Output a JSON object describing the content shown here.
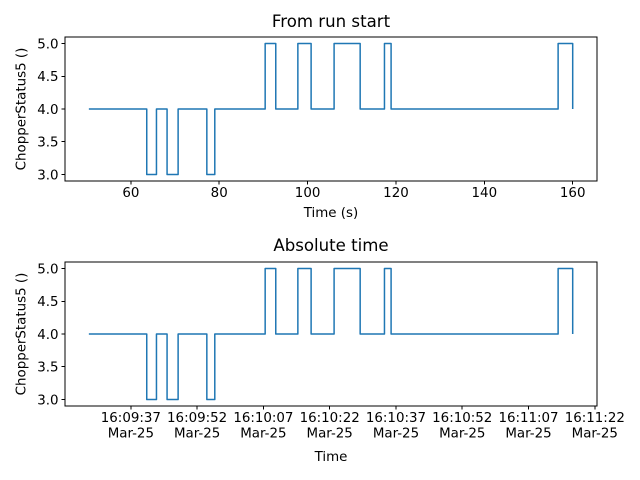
{
  "figure": {
    "background": "#ffffff",
    "axis_color": "#000000",
    "tick_label_color": "#000000",
    "line_color": "#1f77b4"
  },
  "chart_data": [
    {
      "type": "line",
      "drawstyle": "steps-post",
      "title": "From run start",
      "xlabel": "Time (s)",
      "ylabel": "ChopperStatus5 ()",
      "xlim": [
        45.1,
        165.5
      ],
      "ylim": [
        2.9,
        5.1
      ],
      "grid": false,
      "legend": null,
      "xticks": [
        {
          "value": 60,
          "lines": [
            "60"
          ]
        },
        {
          "value": 80,
          "lines": [
            "80"
          ]
        },
        {
          "value": 100,
          "lines": [
            "100"
          ]
        },
        {
          "value": 120,
          "lines": [
            "120"
          ]
        },
        {
          "value": 140,
          "lines": [
            "140"
          ]
        },
        {
          "value": 160,
          "lines": [
            "160"
          ]
        }
      ],
      "yticks": [
        {
          "value": 3.0,
          "label": "3.0"
        },
        {
          "value": 3.5,
          "label": "3.5"
        },
        {
          "value": 4.0,
          "label": "4.0"
        },
        {
          "value": 4.5,
          "label": "4.5"
        },
        {
          "value": 5.0,
          "label": "5.0"
        }
      ],
      "series": [
        {
          "name": "ChopperStatus5",
          "x": [
            50.5,
            63.6,
            65.8,
            68.2,
            70.7,
            77.2,
            79.0,
            90.4,
            92.8,
            97.8,
            100.8,
            106.0,
            111.9,
            117.4,
            118.9,
            156.7,
            160.0
          ],
          "y": [
            4,
            3,
            4,
            3,
            4,
            3,
            4,
            5,
            4,
            5,
            4,
            5,
            4,
            5,
            4,
            5,
            4
          ]
        }
      ]
    },
    {
      "type": "line",
      "drawstyle": "steps-post",
      "title": "Absolute time",
      "xlabel": "Time",
      "ylabel": "ChopperStatus5 ()",
      "xlim": [
        45.1,
        165.5
      ],
      "ylim": [
        2.9,
        5.1
      ],
      "grid": false,
      "legend": null,
      "xticks": [
        {
          "value": 60,
          "lines": [
            "16:09:37",
            "Mar-25"
          ]
        },
        {
          "value": 75,
          "lines": [
            "16:09:52",
            "Mar-25"
          ]
        },
        {
          "value": 90,
          "lines": [
            "16:10:07",
            "Mar-25"
          ]
        },
        {
          "value": 105,
          "lines": [
            "16:10:22",
            "Mar-25"
          ]
        },
        {
          "value": 120,
          "lines": [
            "16:10:37",
            "Mar-25"
          ]
        },
        {
          "value": 135,
          "lines": [
            "16:10:52",
            "Mar-25"
          ]
        },
        {
          "value": 150,
          "lines": [
            "16:11:07",
            "Mar-25"
          ]
        },
        {
          "value": 165,
          "lines": [
            "16:11:22",
            "Mar-25"
          ]
        }
      ],
      "yticks": [
        {
          "value": 3.0,
          "label": "3.0"
        },
        {
          "value": 3.5,
          "label": "3.5"
        },
        {
          "value": 4.0,
          "label": "4.0"
        },
        {
          "value": 4.5,
          "label": "4.5"
        },
        {
          "value": 5.0,
          "label": "5.0"
        }
      ],
      "series": [
        {
          "name": "ChopperStatus5",
          "x": [
            50.5,
            63.6,
            65.8,
            68.2,
            70.7,
            77.2,
            79.0,
            90.4,
            92.8,
            97.8,
            100.8,
            106.0,
            111.9,
            117.4,
            118.9,
            156.7,
            160.0
          ],
          "y": [
            4,
            3,
            4,
            3,
            4,
            3,
            4,
            5,
            4,
            5,
            4,
            5,
            4,
            5,
            4,
            5,
            4
          ]
        }
      ]
    }
  ]
}
